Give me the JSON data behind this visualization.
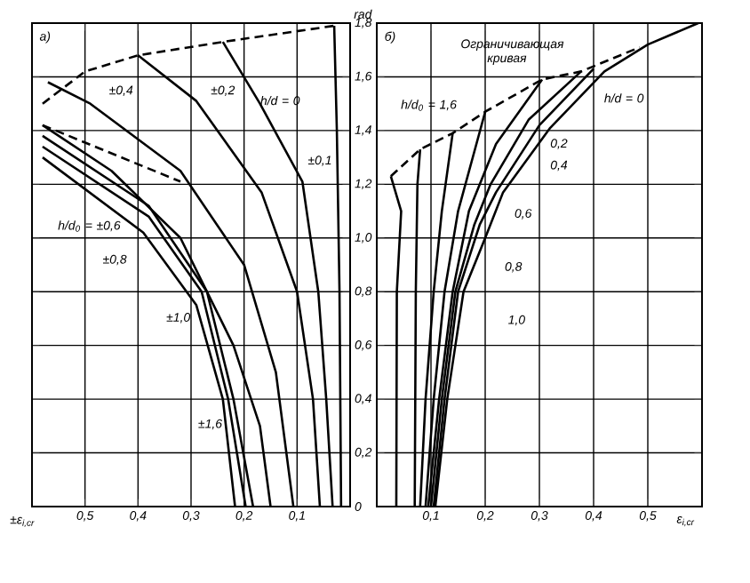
{
  "chart_data": [
    {
      "type": "line",
      "xlabel": "±ε$_{i,cr}$",
      "ylabel": "rad",
      "grid": true,
      "xlim": [
        0.6,
        0
      ],
      "ylim": [
        0,
        1.8
      ],
      "xticks": [
        {
          "value": 0.6,
          "label": null
        },
        {
          "value": 0.5,
          "label": "0,5"
        },
        {
          "value": 0.4,
          "label": "0,4"
        },
        {
          "value": 0.3,
          "label": "0,3"
        },
        {
          "value": 0.2,
          "label": "0,2"
        },
        {
          "value": 0.1,
          "label": "0,1"
        },
        {
          "value": 0,
          "label": null
        }
      ],
      "yticks": [
        0,
        {
          "value": 0.2,
          "label": "0,2"
        },
        {
          "value": 0.4,
          "label": "0,4"
        },
        {
          "value": 0.6,
          "label": "0,6"
        },
        {
          "value": 0.8,
          "label": "0,8"
        },
        {
          "value": 1.0,
          "label": "1,0"
        },
        {
          "value": 1.2,
          "label": "1,2"
        },
        {
          "value": 1.4,
          "label": "1,4"
        },
        {
          "value": 1.6,
          "label": "1,6"
        },
        {
          "value": 1.8,
          "label": "1,8"
        }
      ],
      "series": [
        {
          "color": "#000000",
          "x": [
            0.03,
            0.025,
            0.02,
            0.017
          ],
          "values": [
            1.79,
            1.4,
            0.8,
            0
          ]
        },
        {
          "color": "#000000",
          "x": [
            0.24,
            0.17,
            0.09,
            0.06,
            0.045,
            0.033
          ],
          "values": [
            1.73,
            1.5,
            1.21,
            0.8,
            0.4,
            0
          ]
        },
        {
          "color": "#000000",
          "x": [
            0.4,
            0.29,
            0.167,
            0.1,
            0.07,
            0.057
          ],
          "values": [
            1.68,
            1.51,
            1.17,
            0.8,
            0.4,
            0
          ]
        },
        {
          "color": "#000000",
          "x": [
            0.57,
            0.49,
            0.32,
            0.2,
            0.14,
            0.107
          ],
          "values": [
            1.58,
            1.5,
            1.25,
            0.9,
            0.5,
            0
          ]
        },
        {
          "color": "#000000",
          "x": [
            0.58,
            0.45,
            0.32,
            0.22,
            0.17,
            0.15
          ],
          "values": [
            1.42,
            1.25,
            1.0,
            0.6,
            0.3,
            0
          ]
        },
        {
          "color": "#000000",
          "x": [
            0.58,
            0.38,
            0.27,
            0.22,
            0.183
          ],
          "values": [
            1.38,
            1.12,
            0.8,
            0.4,
            0
          ]
        },
        {
          "color": "#000000",
          "x": [
            0.58,
            0.38,
            0.28,
            0.23,
            0.197
          ],
          "values": [
            1.34,
            1.08,
            0.8,
            0.4,
            0
          ]
        },
        {
          "color": "#000000",
          "x": [
            0.58,
            0.39,
            0.29,
            0.24,
            0.217
          ],
          "values": [
            1.3,
            1.02,
            0.75,
            0.4,
            0
          ]
        },
        {
          "color": "#000000",
          "line_style": "dashed",
          "x": [
            0.58,
            0.5,
            0.4,
            0.24,
            0.03
          ],
          "values": [
            1.5,
            1.62,
            1.68,
            1.73,
            1.79
          ]
        },
        {
          "color": "#000000",
          "line_style": "dashed",
          "x": [
            0.58,
            0.32
          ],
          "values": [
            1.42,
            1.21
          ]
        }
      ],
      "annotations": [
        "a)",
        "±0,4",
        "±0,2",
        "h/d = 0",
        "±0,1",
        "h/d$_{0}$ = ±0,6",
        "±0,8",
        "±1,0",
        "±1,6"
      ]
    },
    {
      "type": "line",
      "xlabel": "ε$_{i,cr}$",
      "grid": true,
      "tick_labels": "x",
      "xlim": [
        0,
        0.6
      ],
      "ylim": [
        0,
        1.8
      ],
      "xticks": [
        {
          "value": 0,
          "label": null
        },
        {
          "value": 0.1,
          "label": "0,1"
        },
        {
          "value": 0.2,
          "label": "0,2"
        },
        {
          "value": 0.3,
          "label": "0,3"
        },
        {
          "value": 0.4,
          "label": "0,4"
        },
        {
          "value": 0.5,
          "label": "0,5"
        },
        {
          "value": 0.6,
          "label": null
        }
      ],
      "yticks": [
        0,
        0.2,
        0.4,
        0.6,
        0.8,
        1.0,
        1.2,
        1.4,
        1.6,
        1.8
      ],
      "series": [
        {
          "color": "#000000",
          "x": [
            0.108,
            0.13,
            0.16,
            0.2,
            0.233,
            0.32,
            0.42,
            0.5,
            0.593
          ],
          "values": [
            0,
            0.4,
            0.8,
            1.0,
            1.17,
            1.41,
            1.62,
            1.72,
            1.8
          ]
        },
        {
          "color": "#000000",
          "x": [
            0.105,
            0.125,
            0.15,
            0.19,
            0.22,
            0.3,
            0.4
          ],
          "values": [
            0,
            0.4,
            0.8,
            1.05,
            1.17,
            1.42,
            1.63
          ]
        },
        {
          "color": "#000000",
          "x": [
            0.1,
            0.12,
            0.145,
            0.18,
            0.21,
            0.28,
            0.377
          ],
          "values": [
            0,
            0.4,
            0.8,
            1.05,
            1.2,
            1.44,
            1.62
          ]
        },
        {
          "color": "#000000",
          "x": [
            0.095,
            0.115,
            0.14,
            0.17,
            0.22,
            0.305
          ],
          "values": [
            0,
            0.4,
            0.8,
            1.1,
            1.35,
            1.59
          ]
        },
        {
          "color": "#000000",
          "x": [
            0.09,
            0.105,
            0.125,
            0.15,
            0.2
          ],
          "values": [
            0,
            0.4,
            0.8,
            1.1,
            1.47
          ]
        },
        {
          "color": "#000000",
          "x": [
            0.08,
            0.09,
            0.105,
            0.12,
            0.14
          ],
          "values": [
            0,
            0.4,
            0.8,
            1.1,
            1.39
          ]
        },
        {
          "color": "#000000",
          "x": [
            0.07,
            0.072,
            0.075,
            0.08
          ],
          "values": [
            0,
            0.8,
            1.2,
            1.33
          ]
        },
        {
          "color": "#000000",
          "x": [
            0.036,
            0.037,
            0.045,
            0.026
          ],
          "values": [
            0,
            0.8,
            1.1,
            1.23
          ]
        },
        {
          "color": "#000000",
          "line_style": "dashed",
          "x": [
            0.026,
            0.08,
            0.14,
            0.2,
            0.305,
            0.377,
            0.485
          ],
          "values": [
            1.23,
            1.33,
            1.39,
            1.47,
            1.59,
            1.62,
            1.71
          ]
        }
      ],
      "annotations": [
        "б)",
        "Ограничивающая кривая",
        "h/d$_{0}$ = 1,6",
        "h/d = 0",
        "0,2",
        "0,4",
        "0,6",
        "0,8",
        "1,0"
      ]
    }
  ]
}
